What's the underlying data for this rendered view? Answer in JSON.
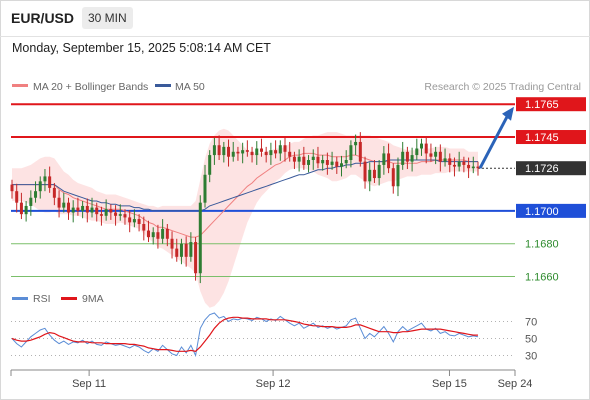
{
  "header": {
    "pair": "EUR/USD",
    "timeframe": "30 MIN",
    "timestamp": "Monday, September 15, 2025 5:08:14 AM CET"
  },
  "colors": {
    "resistance": "#e0161b",
    "support": "#1f4fd8",
    "minor_support": "#7bbf6a",
    "bollinger_fill": "#fde0e0",
    "ma20": "#f08080",
    "ma50": "#3a5a9a",
    "candle_up": "#2e7d32",
    "candle_down": "#c62828",
    "rsi": "#5b8dd6",
    "rsi_ma": "#e0161b",
    "arrow": "#2b63b8",
    "current_price_tag": "#333333"
  },
  "chart_data": [
    {
      "type": "candlestick",
      "legend": [
        "MA 20 + Bollinger Bands",
        "MA 50"
      ],
      "legend_position": "top-left",
      "source_note": "Research © 2025 Trading Central",
      "ylim": [
        1.1653,
        1.177
      ],
      "x_ticks": [
        {
          "label": "Sep 11",
          "t": 0.155
        },
        {
          "label": "Sep 12",
          "t": 0.52
        },
        {
          "label": "Sep 15",
          "t": 0.87
        },
        {
          "label": "Sep 24",
          "t": 1.0
        }
      ],
      "levels": [
        {
          "value": 1.1765,
          "label": "1.1765",
          "kind": "resistance"
        },
        {
          "value": 1.1745,
          "label": "1.1745",
          "kind": "resistance"
        },
        {
          "value": 1.1726,
          "label": "1.1726",
          "kind": "current"
        },
        {
          "value": 1.17,
          "label": "1.1700",
          "kind": "support"
        },
        {
          "value": 1.168,
          "label": "1.1680",
          "kind": "minor_support"
        },
        {
          "value": 1.166,
          "label": "1.1660",
          "kind": "minor_support"
        }
      ],
      "close": [
        1.1712,
        1.1705,
        1.1698,
        1.1703,
        1.1708,
        1.1712,
        1.1718,
        1.1721,
        1.1714,
        1.1708,
        1.1702,
        1.1705,
        1.1699,
        1.1702,
        1.17,
        1.1703,
        1.1699,
        1.1702,
        1.1698,
        1.1697,
        1.1701,
        1.1699,
        1.1697,
        1.1698,
        1.1696,
        1.1693,
        1.1695,
        1.1692,
        1.1688,
        1.1684,
        1.1687,
        1.1683,
        1.1689,
        1.1683,
        1.1677,
        1.1672,
        1.168,
        1.1672,
        1.1681,
        1.1662,
        1.1705,
        1.1722,
        1.1734,
        1.174,
        1.1734,
        1.1739,
        1.1733,
        1.1736,
        1.1735,
        1.1737,
        1.1736,
        1.1734,
        1.1738,
        1.1736,
        1.1734,
        1.1737,
        1.1735,
        1.174,
        1.1736,
        1.1733,
        1.173,
        1.1733,
        1.1728,
        1.1731,
        1.1733,
        1.1729,
        1.1731,
        1.1728,
        1.173,
        1.1727,
        1.1729,
        1.1731,
        1.174,
        1.1742,
        1.173,
        1.1718,
        1.1725,
        1.172,
        1.1728,
        1.1735,
        1.1726,
        1.1715,
        1.1728,
        1.1736,
        1.173,
        1.1734,
        1.1738,
        1.1741,
        1.1735,
        1.1733,
        1.1736,
        1.173,
        1.1732,
        1.1728,
        1.1727,
        1.173,
        1.1728,
        1.1726,
        1.1727,
        1.1726
      ],
      "ma20": [
        1.1716,
        1.1716,
        1.1716,
        1.1716,
        1.1716,
        1.1716,
        1.1716,
        1.1716,
        1.1716,
        1.1716,
        1.1713,
        1.1711,
        1.171,
        1.1708,
        1.1707,
        1.1706,
        1.1705,
        1.1704,
        1.1703,
        1.1702,
        1.1701,
        1.1701,
        1.1701,
        1.1701,
        1.17,
        1.1699,
        1.1698,
        1.1697,
        1.1695,
        1.1693,
        1.1692,
        1.169,
        1.169,
        1.1689,
        1.1688,
        1.1687,
        1.1686,
        1.1685,
        1.1684,
        1.1684,
        1.1685,
        1.1688,
        1.1691,
        1.1694,
        1.1697,
        1.17,
        1.1703,
        1.1706,
        1.1709,
        1.1712,
        1.1715,
        1.1717,
        1.172,
        1.1722,
        1.1724,
        1.1726,
        1.1728,
        1.1729,
        1.1731,
        1.1733,
        1.1734,
        1.1734,
        1.1735,
        1.1735,
        1.1735,
        1.1734,
        1.1734,
        1.1734,
        1.1733,
        1.1733,
        1.1733,
        1.1733,
        1.1734,
        1.1734,
        1.1733,
        1.1732,
        1.1731,
        1.173,
        1.173,
        1.173,
        1.173,
        1.1729,
        1.1729,
        1.1729,
        1.1729,
        1.1729,
        1.1729,
        1.173,
        1.173,
        1.173,
        1.1731,
        1.1731,
        1.1731,
        1.1731,
        1.1731,
        1.1731,
        1.1731,
        1.173,
        1.173,
        1.173
      ],
      "ma50": [
        1.1716,
        1.1716,
        1.1716,
        1.1716,
        1.1716,
        1.1716,
        1.1716,
        1.1716,
        1.1716,
        1.1716,
        1.1714,
        1.1712,
        1.1711,
        1.171,
        1.1709,
        1.1708,
        1.1707,
        1.1706,
        1.1706,
        1.1705,
        1.1705,
        1.1704,
        1.1704,
        1.1703,
        1.1703,
        1.1703,
        1.1702,
        1.1702,
        1.1701,
        1.1701,
        1.17,
        1.17,
        1.17,
        1.17,
        1.17,
        1.17,
        1.17,
        1.17,
        1.17,
        1.17,
        1.17,
        1.1701,
        1.1703,
        1.1704,
        1.1705,
        1.1706,
        1.1707,
        1.1708,
        1.1709,
        1.171,
        1.1711,
        1.1712,
        1.1713,
        1.1714,
        1.1715,
        1.1716,
        1.1717,
        1.1718,
        1.1719,
        1.172,
        1.1721,
        1.1722,
        1.1722,
        1.1723,
        1.1724,
        1.1725,
        1.1725,
        1.1726,
        1.1726,
        1.1727,
        1.1727,
        1.1728,
        1.1728,
        1.1729,
        1.1729,
        1.1729,
        1.173,
        1.173,
        1.173,
        1.173,
        1.1731,
        1.1731,
        1.1731,
        1.1731,
        1.1731,
        1.1731,
        1.1731,
        1.1731,
        1.1731,
        1.1731,
        1.1731,
        1.173,
        1.173,
        1.173,
        1.173,
        1.173,
        1.173,
        1.173,
        1.173,
        1.173
      ],
      "bb_width": [
        0.001,
        0.001,
        0.001,
        0.0011,
        0.0012,
        0.0014,
        0.0016,
        0.0017,
        0.0017,
        0.0016,
        0.0015,
        0.0013,
        0.0012,
        0.0011,
        0.001,
        0.001,
        0.001,
        0.001,
        0.0009,
        0.0009,
        0.0009,
        0.0009,
        0.0009,
        0.0008,
        0.0008,
        0.0008,
        0.0008,
        0.0008,
        0.0009,
        0.001,
        0.0011,
        0.0012,
        0.0013,
        0.0014,
        0.0015,
        0.0016,
        0.0017,
        0.0018,
        0.0019,
        0.0022,
        0.0034,
        0.0044,
        0.005,
        0.0052,
        0.0052,
        0.005,
        0.0046,
        0.004,
        0.0034,
        0.0028,
        0.0022,
        0.0018,
        0.0015,
        0.0013,
        0.0012,
        0.0011,
        0.001,
        0.0009,
        0.0008,
        0.0008,
        0.0008,
        0.0008,
        0.0009,
        0.001,
        0.0011,
        0.0012,
        0.0013,
        0.0014,
        0.0015,
        0.0015,
        0.0014,
        0.0013,
        0.0012,
        0.0012,
        0.0013,
        0.0014,
        0.0015,
        0.0015,
        0.0014,
        0.0013,
        0.0012,
        0.0011,
        0.001,
        0.0009,
        0.0008,
        0.0008,
        0.0008,
        0.0008,
        0.0008,
        0.0008,
        0.0008,
        0.0008,
        0.0008,
        0.0007,
        0.0007,
        0.0007,
        0.0007,
        0.0006,
        0.0006,
        0.0006
      ],
      "projection": {
        "from": 1.1726,
        "to": 1.1761
      }
    },
    {
      "type": "line",
      "legend": [
        "RSI",
        "9MA"
      ],
      "legend_position": "top-left",
      "ylim": [
        20,
        80
      ],
      "y_ticks": [
        70,
        50,
        30
      ],
      "rsi": [
        50,
        44,
        40,
        46,
        52,
        56,
        60,
        62,
        54,
        48,
        44,
        47,
        43,
        46,
        45,
        48,
        44,
        47,
        43,
        42,
        46,
        44,
        42,
        43,
        41,
        39,
        42,
        40,
        36,
        33,
        38,
        35,
        42,
        37,
        32,
        30,
        40,
        33,
        42,
        30,
        62,
        72,
        78,
        80,
        74,
        76,
        70,
        73,
        72,
        74,
        73,
        71,
        75,
        73,
        70,
        73,
        71,
        76,
        72,
        68,
        65,
        68,
        62,
        65,
        68,
        63,
        65,
        62,
        64,
        61,
        63,
        65,
        72,
        74,
        62,
        50,
        56,
        52,
        58,
        64,
        56,
        46,
        58,
        64,
        59,
        62,
        65,
        68,
        61,
        59,
        62,
        56,
        58,
        54,
        53,
        56,
        54,
        52,
        53,
        52
      ],
      "rsi_ma": [
        50,
        48,
        47,
        47,
        48,
        50,
        52,
        55,
        57,
        56,
        53,
        51,
        49,
        47,
        46,
        46,
        46,
        45,
        45,
        45,
        44,
        44,
        44,
        44,
        44,
        43,
        43,
        42,
        41,
        39,
        38,
        37,
        37,
        37,
        36,
        35,
        35,
        35,
        36,
        35,
        40,
        47,
        54,
        62,
        68,
        72,
        74,
        75,
        75,
        74,
        74,
        73,
        73,
        73,
        73,
        72,
        72,
        72,
        72,
        71,
        70,
        69,
        67,
        66,
        65,
        65,
        64,
        64,
        64,
        63,
        63,
        63,
        64,
        66,
        66,
        64,
        62,
        60,
        58,
        58,
        58,
        57,
        57,
        58,
        58,
        59,
        60,
        61,
        61,
        61,
        61,
        61,
        60,
        59,
        58,
        57,
        56,
        55,
        54,
        54
      ]
    }
  ]
}
